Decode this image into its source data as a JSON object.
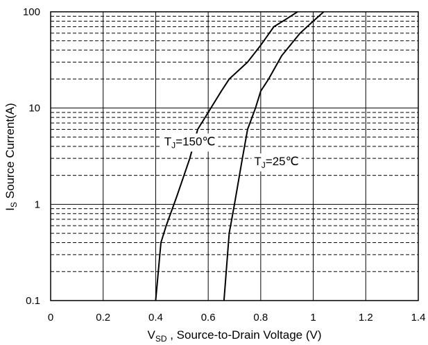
{
  "chart_data": {
    "type": "line",
    "xlabel": {
      "main": "V",
      "sub": "SD",
      "rest": " , Source-to-Drain Voltage (V)"
    },
    "ylabel": {
      "main": "I",
      "sub": "S",
      "rest": " Source Current(A)"
    },
    "xlim": [
      0,
      1.4
    ],
    "ylim": [
      0.1,
      100
    ],
    "yscale": "log",
    "grid": true,
    "x_ticks": [
      "0",
      "0.2",
      "0.4",
      "0.6",
      "0.8",
      "1",
      "1.2",
      "1.4"
    ],
    "y_ticks": [
      "0.1",
      "1",
      "10",
      "100"
    ],
    "series": [
      {
        "label_main": "T",
        "label_sub": "J",
        "label_rest": "=150℃",
        "color": "#000000",
        "points": [
          [
            0.4,
            0.1
          ],
          [
            0.42,
            0.4
          ],
          [
            0.44,
            0.6
          ],
          [
            0.48,
            1.2
          ],
          [
            0.53,
            3.0
          ],
          [
            0.56,
            6.0
          ],
          [
            0.6,
            9.0
          ],
          [
            0.65,
            15
          ],
          [
            0.68,
            20
          ],
          [
            0.75,
            30
          ],
          [
            0.8,
            45
          ],
          [
            0.85,
            70
          ],
          [
            0.9,
            85
          ],
          [
            0.94,
            100
          ]
        ]
      },
      {
        "label_main": "T",
        "label_sub": "J",
        "label_rest": "=25℃",
        "color": "#000000",
        "points": [
          [
            0.66,
            0.1
          ],
          [
            0.68,
            0.5
          ],
          [
            0.7,
            1.0
          ],
          [
            0.73,
            3.0
          ],
          [
            0.75,
            6.0
          ],
          [
            0.78,
            10
          ],
          [
            0.8,
            15
          ],
          [
            0.83,
            20
          ],
          [
            0.88,
            35
          ],
          [
            0.95,
            60
          ],
          [
            1.0,
            80
          ],
          [
            1.04,
            100
          ]
        ]
      }
    ]
  }
}
